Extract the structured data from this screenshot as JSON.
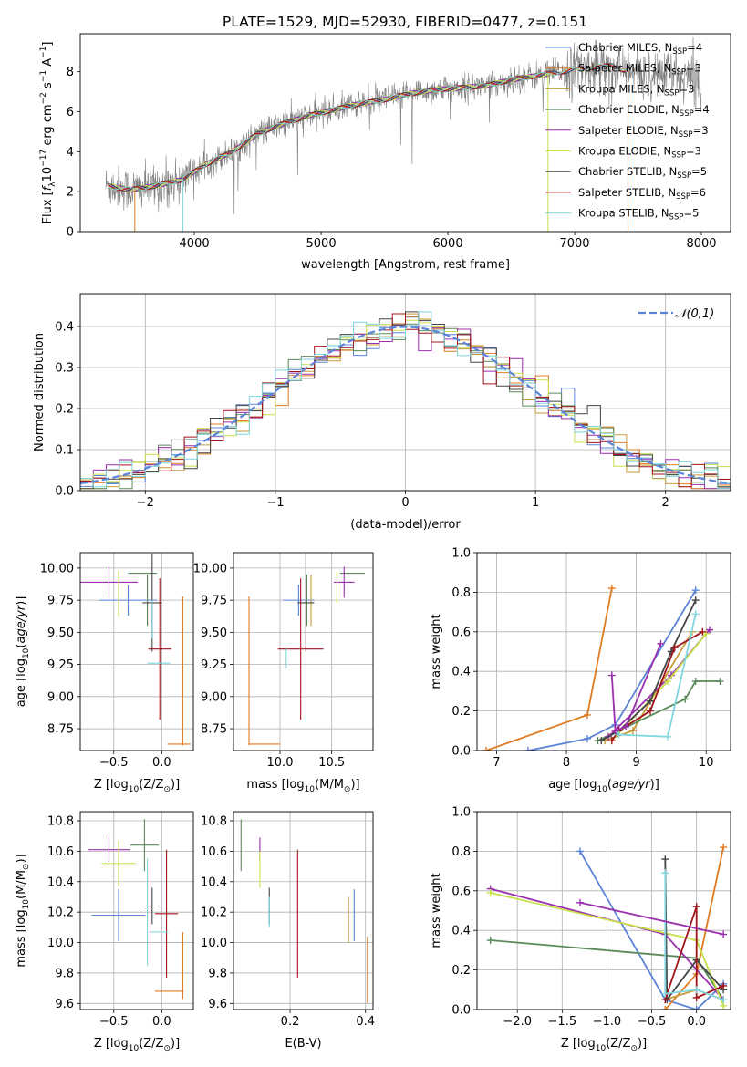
{
  "figure_title": "PLATE=1529, MJD=52930, FIBERID=0477, z=0.151",
  "colors": {
    "Chabrier MILES": "#5b84d9",
    "Salpeter MILES": "#e07b22",
    "Kroupa MILES": "#c79a3a",
    "Chabrier ELODIE": "#5a8a5a",
    "Salpeter ELODIE": "#9b2fae",
    "Kroupa ELODIE": "#c8e04a",
    "Chabrier STELIB": "#444444",
    "Salpeter STELIB": "#a1141a",
    "Kroupa STELIB": "#7fd6e0",
    "data": "#808080",
    "normal": "#5b84d9"
  },
  "chart_data": [
    {
      "id": "spectrum",
      "type": "line",
      "title": "PLATE=1529, MJD=52930, FIBERID=0477, z=0.151",
      "xlabel": "wavelength [Angstrom, rest frame]",
      "ylabel_parts": [
        "Flux [",
        "f",
        "λ",
        "10",
        "−17",
        " erg cm",
        "−2",
        " s",
        "−1",
        " A",
        "−1",
        "]"
      ],
      "xlim": [
        3100,
        8230
      ],
      "ylim": [
        0,
        9.9
      ],
      "xticks": [
        4000,
        5000,
        6000,
        7000,
        8000
      ],
      "yticks": [
        0,
        2,
        4,
        6,
        8
      ],
      "grid": false,
      "legend_position": "top-right",
      "legend": [
        {
          "model": "Chabrier MILES",
          "label": "Chabrier MILES, N",
          "sub": "SSP",
          "tail": "=4"
        },
        {
          "model": "Salpeter MILES",
          "label": "Salpeter MILES, N",
          "sub": "SSP",
          "tail": "=3"
        },
        {
          "model": "Kroupa MILES",
          "label": "Kroupa MILES, N",
          "sub": "SSP",
          "tail": "=3"
        },
        {
          "model": "Chabrier ELODIE",
          "label": "Chabrier ELODIE, N",
          "sub": "SSP",
          "tail": "=4"
        },
        {
          "model": "Salpeter ELODIE",
          "label": "Salpeter ELODIE, N",
          "sub": "SSP",
          "tail": "=3"
        },
        {
          "model": "Kroupa ELODIE",
          "label": "Kroupa ELODIE, N",
          "sub": "SSP",
          "tail": "=3"
        },
        {
          "model": "Chabrier STELIB",
          "label": "Chabrier STELIB, N",
          "sub": "SSP",
          "tail": "=5"
        },
        {
          "model": "Salpeter STELIB",
          "label": "Salpeter STELIB, N",
          "sub": "SSP",
          "tail": "=6"
        },
        {
          "model": "Kroupa STELIB",
          "label": "Kroupa STELIB, N",
          "sub": "SSP",
          "tail": "=5"
        }
      ],
      "continuum": {
        "x": [
          3300,
          3500,
          3700,
          3900,
          4100,
          4300,
          4500,
          4700,
          4900,
          5100,
          5300,
          5500,
          5700,
          5900,
          6100,
          6300,
          6500,
          6700,
          6900,
          7100,
          7300,
          7500,
          7700,
          7900,
          8000
        ],
        "y": [
          2.3,
          2.1,
          2.3,
          2.6,
          3.4,
          4.0,
          4.9,
          5.4,
          5.8,
          6.1,
          6.4,
          6.6,
          6.9,
          7.1,
          7.2,
          7.3,
          7.6,
          7.8,
          8.0,
          8.2,
          8.3,
          7.8,
          7.9,
          7.7,
          7.6
        ]
      }
    },
    {
      "id": "residuals",
      "type": "step",
      "xlabel": "(data-model)/error",
      "ylabel": "Normed distribution",
      "xlim": [
        -2.5,
        2.5
      ],
      "ylim": [
        0,
        0.48
      ],
      "xticks": [
        -2,
        -1,
        0,
        1,
        2
      ],
      "yticks": [
        0.0,
        0.1,
        0.2,
        0.3,
        0.4
      ],
      "grid": true,
      "legend_position": "top-right",
      "legend": [
        {
          "label": "𝒩(0,1)",
          "style": "dashed"
        }
      ],
      "bin_width": 0.1
    },
    {
      "id": "age_vs_Z",
      "type": "errorbar",
      "xlabel_parts": [
        "Z [log",
        "10",
        "(Z/Z",
        "⊙",
        ")]"
      ],
      "ylabel_parts": [
        "age  [log",
        "10",
        "(",
        "age/yr",
        ")]"
      ],
      "xlim": [
        -0.85,
        0.33
      ],
      "ylim": [
        8.58,
        10.12
      ],
      "xticks": [
        -0.5,
        0.0
      ],
      "yticks": [
        8.75,
        9.0,
        9.25,
        9.5,
        9.75,
        10.0
      ],
      "grid": true,
      "points": [
        {
          "model": "Chabrier MILES",
          "x": -0.35,
          "xerr": 0.3,
          "y": 9.75,
          "yerr": 0.12
        },
        {
          "model": "Salpeter MILES",
          "x": 0.18,
          "xerr": 0.12,
          "y": 8.63,
          "yerr": 0.0
        },
        {
          "model": "Salpeter MILES",
          "x": 0.22,
          "xerr": 0.0,
          "y": 9.2,
          "yerr": 0.58
        },
        {
          "model": "Kroupa MILES",
          "x": -0.15,
          "xerr": 0.0,
          "y": 9.75,
          "yerr": 0.2
        },
        {
          "model": "Chabrier ELODIE",
          "x": -0.15,
          "xerr": 0.0,
          "y": 9.75,
          "yerr": 0.2
        },
        {
          "model": "Chabrier ELODIE",
          "x": -0.2,
          "xerr": 0.15,
          "y": 9.96,
          "yerr": 0.0
        },
        {
          "model": "Salpeter ELODIE",
          "x": -0.55,
          "xerr": 0.3,
          "y": 9.89,
          "yerr": 0.12
        },
        {
          "model": "Kroupa ELODIE",
          "x": -0.45,
          "xerr": 0.0,
          "y": 9.8,
          "yerr": 0.18
        },
        {
          "model": "Chabrier STELIB",
          "x": -0.1,
          "xerr": 0.1,
          "y": 9.73,
          "yerr": 0.38
        },
        {
          "model": "Salpeter STELIB",
          "x": -0.02,
          "xerr": 0.12,
          "y": 9.37,
          "yerr": 0.55
        },
        {
          "model": "Kroupa STELIB",
          "x": -0.1,
          "xerr": 0.0,
          "y": 9.6,
          "yerr": 0.15
        },
        {
          "model": "Kroupa STELIB",
          "x": -0.03,
          "xerr": 0.12,
          "y": 9.26,
          "yerr": 0.0
        }
      ]
    },
    {
      "id": "age_vs_mass",
      "type": "errorbar",
      "xlabel_parts": [
        "mass [log",
        "10",
        "(M/M",
        "⊙",
        ")]"
      ],
      "ylabel": "",
      "xlim": [
        9.55,
        10.9
      ],
      "ylim": [
        8.58,
        10.12
      ],
      "xticks": [
        10.0,
        10.5
      ],
      "yticks": [
        8.75,
        9.0,
        9.25,
        9.5,
        9.75,
        10.0
      ],
      "grid": true,
      "points": [
        {
          "model": "Chabrier MILES",
          "x": 10.18,
          "xerr": 0.15,
          "y": 9.75,
          "yerr": 0.12
        },
        {
          "model": "Salpeter MILES",
          "x": 9.7,
          "xerr": 0.0,
          "y": 9.2,
          "yerr": 0.58
        },
        {
          "model": "Salpeter MILES",
          "x": 9.85,
          "xerr": 0.15,
          "y": 8.63,
          "yerr": 0.0
        },
        {
          "model": "Kroupa MILES",
          "x": 10.3,
          "xerr": 0.0,
          "y": 9.75,
          "yerr": 0.2
        },
        {
          "model": "Chabrier ELODIE",
          "x": 10.26,
          "xerr": 0.0,
          "y": 9.75,
          "yerr": 0.2
        },
        {
          "model": "Chabrier ELODIE",
          "x": 10.7,
          "xerr": 0.12,
          "y": 9.96,
          "yerr": 0.0
        },
        {
          "model": "Salpeter ELODIE",
          "x": 10.62,
          "xerr": 0.1,
          "y": 9.89,
          "yerr": 0.12
        },
        {
          "model": "Kroupa ELODIE",
          "x": 10.55,
          "xerr": 0.0,
          "y": 9.85,
          "yerr": 0.12
        },
        {
          "model": "Chabrier STELIB",
          "x": 10.25,
          "xerr": 0.08,
          "y": 9.73,
          "yerr": 0.38
        },
        {
          "model": "Salpeter STELIB",
          "x": 10.2,
          "xerr": 0.22,
          "y": 9.37,
          "yerr": 0.55
        },
        {
          "model": "Kroupa STELIB",
          "x": 10.06,
          "xerr": 0.0,
          "y": 9.3,
          "yerr": 0.08
        }
      ]
    },
    {
      "id": "weight_vs_age",
      "type": "line",
      "xlabel_parts": [
        "age  [log",
        "10",
        "(",
        "age/yr",
        ")]"
      ],
      "ylabel": "mass weight",
      "xlim": [
        6.72,
        10.35
      ],
      "ylim": [
        0,
        1.0
      ],
      "xticks": [
        7,
        8,
        9,
        10
      ],
      "yticks": [
        0.0,
        0.2,
        0.4,
        0.6,
        0.8,
        1.0
      ],
      "grid": true,
      "series": [
        {
          "model": "Chabrier MILES",
          "x": [
            7.45,
            8.3,
            8.7,
            9.85
          ],
          "y": [
            0.0,
            0.06,
            0.13,
            0.81
          ]
        },
        {
          "model": "Salpeter MILES",
          "x": [
            6.85,
            8.3,
            8.65
          ],
          "y": [
            0.0,
            0.18,
            0.82
          ]
        },
        {
          "model": "Kroupa MILES",
          "x": [
            8.55,
            8.95,
            9.8
          ],
          "y": [
            0.05,
            0.1,
            0.6
          ]
        },
        {
          "model": "Chabrier ELODIE",
          "x": [
            8.45,
            9.7,
            9.85,
            10.2
          ],
          "y": [
            0.05,
            0.26,
            0.35,
            0.35
          ]
        },
        {
          "model": "Salpeter ELODIE",
          "x": [
            8.6,
            9.5,
            10.05
          ],
          "y": [
            0.07,
            0.38,
            0.61
          ]
        },
        {
          "model": "Kroupa ELODIE",
          "x": [
            8.65,
            9.45,
            10.0
          ],
          "y": [
            0.05,
            0.35,
            0.59
          ]
        },
        {
          "model": "Chabrier STELIB",
          "x": [
            8.5,
            8.75,
            9.2,
            9.5,
            9.85
          ],
          "y": [
            0.05,
            0.1,
            0.25,
            0.5,
            0.76
          ]
        },
        {
          "model": "Salpeter STELIB",
          "x": [
            8.65,
            8.75,
            9.2,
            9.55,
            9.95
          ],
          "y": [
            0.05,
            0.1,
            0.2,
            0.52,
            0.6
          ]
        },
        {
          "model": "Kroupa STELIB",
          "x": [
            8.7,
            8.75,
            9.45,
            9.85
          ],
          "y": [
            0.1,
            0.08,
            0.07,
            0.69
          ]
        },
        {
          "model": "Salpeter ELODIE",
          "x": [
            8.65,
            8.7,
            8.85,
            9.35
          ],
          "y": [
            0.38,
            0.1,
            0.12,
            0.54
          ]
        }
      ]
    },
    {
      "id": "mass_vs_Z",
      "type": "errorbar",
      "xlabel_parts": [
        "Z [log",
        "10",
        "(Z/Z",
        "⊙",
        ")]"
      ],
      "ylabel_parts": [
        "mass [log",
        "10",
        "(M/M",
        "⊙",
        ")]"
      ],
      "xlim": [
        -0.85,
        0.33
      ],
      "ylim": [
        9.56,
        10.86
      ],
      "xticks": [
        -0.5,
        0.0
      ],
      "yticks": [
        9.6,
        9.8,
        10.0,
        10.2,
        10.4,
        10.6,
        10.8
      ],
      "grid": true,
      "points": [
        {
          "model": "Chabrier MILES",
          "x": -0.45,
          "xerr": 0.28,
          "y": 10.18,
          "yerr": 0.17
        },
        {
          "model": "Salpeter MILES",
          "x": 0.08,
          "xerr": 0.15,
          "y": 9.68,
          "yerr": 0.0
        },
        {
          "model": "Salpeter MILES",
          "x": 0.22,
          "xerr": 0.0,
          "y": 9.85,
          "yerr": 0.22
        },
        {
          "model": "Kroupa MILES",
          "x": -0.15,
          "xerr": 0.0,
          "y": 10.3,
          "yerr": 0.2
        },
        {
          "model": "Chabrier ELODIE",
          "x": -0.18,
          "xerr": 0.15,
          "y": 10.64,
          "yerr": 0.17
        },
        {
          "model": "Salpeter ELODIE",
          "x": -0.55,
          "xerr": 0.22,
          "y": 10.61,
          "yerr": 0.08
        },
        {
          "model": "Kroupa ELODIE",
          "x": -0.45,
          "xerr": 0.18,
          "y": 10.52,
          "yerr": 0.15
        },
        {
          "model": "Chabrier STELIB",
          "x": -0.1,
          "xerr": 0.08,
          "y": 10.24,
          "yerr": 0.12
        },
        {
          "model": "Salpeter STELIB",
          "x": 0.05,
          "xerr": 0.12,
          "y": 10.19,
          "yerr": 0.42
        },
        {
          "model": "Kroupa STELIB",
          "x": -0.15,
          "xerr": 0.0,
          "y": 10.2,
          "yerr": 0.35
        },
        {
          "model": "Kroupa STELIB",
          "x": -0.03,
          "xerr": 0.1,
          "y": 10.07,
          "yerr": 0.0
        }
      ]
    },
    {
      "id": "mass_vs_ebv",
      "type": "errorbar",
      "xlabel": "E(B-V)",
      "ylabel": "",
      "xlim": [
        0.05,
        0.42
      ],
      "ylim": [
        9.56,
        10.86
      ],
      "xticks": [
        0.2,
        0.4
      ],
      "yticks": [
        9.6,
        9.8,
        10.0,
        10.2,
        10.4,
        10.6,
        10.8
      ],
      "grid": true,
      "points": [
        {
          "model": "Chabrier ELODIE",
          "x": 0.07,
          "xerr": 0.0,
          "y": 10.64,
          "yerr": 0.17
        },
        {
          "model": "Salpeter ELODIE",
          "x": 0.12,
          "xerr": 0.0,
          "y": 10.61,
          "yerr": 0.08
        },
        {
          "model": "Kroupa ELODIE",
          "x": 0.12,
          "xerr": 0.0,
          "y": 10.48,
          "yerr": 0.12
        },
        {
          "model": "Chabrier STELIB",
          "x": 0.145,
          "xerr": 0.0,
          "y": 10.24,
          "yerr": 0.12
        },
        {
          "model": "Kroupa STELIB",
          "x": 0.145,
          "xerr": 0.0,
          "y": 10.2,
          "yerr": 0.1
        },
        {
          "model": "Salpeter STELIB",
          "x": 0.22,
          "xerr": 0.0,
          "y": 10.19,
          "yerr": 0.42
        },
        {
          "model": "Kroupa MILES",
          "x": 0.355,
          "xerr": 0.0,
          "y": 10.15,
          "yerr": 0.15
        },
        {
          "model": "Chabrier MILES",
          "x": 0.37,
          "xerr": 0.0,
          "y": 10.18,
          "yerr": 0.17
        },
        {
          "model": "Salpeter MILES",
          "x": 0.405,
          "xerr": 0.0,
          "y": 9.82,
          "yerr": 0.22
        }
      ]
    },
    {
      "id": "weight_vs_Z",
      "type": "line",
      "xlabel_parts": [
        "Z [log",
        "10",
        "(Z/Z",
        "⊙",
        ")]"
      ],
      "ylabel": "mass weight",
      "xlim": [
        -2.45,
        0.38
      ],
      "ylim": [
        0,
        1.0
      ],
      "xticks": [
        -2.0,
        -1.5,
        -1.0,
        -0.5,
        0.0
      ],
      "yticks": [
        0.0,
        0.2,
        0.4,
        0.6,
        0.8,
        1.0
      ],
      "grid": true,
      "series": [
        {
          "model": "Chabrier MILES",
          "x": [
            -1.3,
            -0.35,
            0.0,
            0.3
          ],
          "y": [
            0.8,
            0.05,
            0.0,
            0.13
          ]
        },
        {
          "model": "Salpeter MILES",
          "x": [
            -0.35,
            0.0,
            0.3
          ],
          "y": [
            0.0,
            0.18,
            0.82
          ]
        },
        {
          "model": "Kroupa MILES",
          "x": [
            -0.35,
            0.0,
            0.3
          ],
          "y": [
            0.05,
            0.1,
            0.05
          ]
        },
        {
          "model": "Chabrier ELODIE",
          "x": [
            -2.3,
            0.0,
            0.3
          ],
          "y": [
            0.35,
            0.26,
            0.05
          ]
        },
        {
          "model": "Salpeter ELODIE",
          "x": [
            -2.3,
            -0.35,
            0.3
          ],
          "y": [
            0.61,
            0.38,
            0.05
          ]
        },
        {
          "model": "Kroupa ELODIE",
          "x": [
            -2.3,
            0.0,
            0.3
          ],
          "y": [
            0.59,
            0.35,
            0.02
          ]
        },
        {
          "model": "Chabrier STELIB",
          "x": [
            -0.35,
            -0.33,
            0.0,
            0.3
          ],
          "y": [
            0.76,
            0.05,
            0.25,
            0.1
          ]
        },
        {
          "model": "Salpeter STELIB",
          "x": [
            -0.35,
            0.0,
            0.0,
            0.3
          ],
          "y": [
            0.05,
            0.52,
            0.06,
            0.12
          ]
        },
        {
          "model": "Kroupa STELIB",
          "x": [
            -0.35,
            -0.35,
            0.0,
            0.3
          ],
          "y": [
            0.69,
            0.08,
            0.1,
            0.05
          ]
        },
        {
          "model": "Salpeter ELODIE",
          "x": [
            -1.3,
            0.3
          ],
          "y": [
            0.54,
            0.38
          ]
        }
      ]
    }
  ]
}
